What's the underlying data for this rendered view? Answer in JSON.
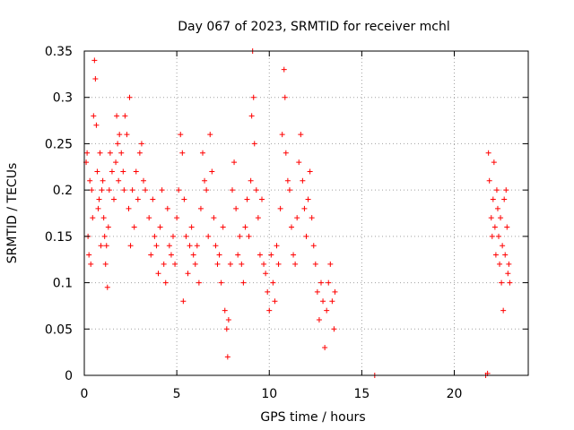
{
  "chart_data": {
    "type": "scatter",
    "title": "Day 067 of 2023, SRMTID for receiver mchl",
    "xlabel": "GPS time / hours",
    "ylabel": "SRMTID / TECUs",
    "xlim": [
      0,
      24
    ],
    "ylim": [
      0,
      0.35
    ],
    "x_ticks": [
      0,
      5,
      10,
      15,
      20
    ],
    "y_ticks": [
      0,
      0.05,
      0.1,
      0.15,
      0.2,
      0.25,
      0.3,
      0.35
    ],
    "x_tick_labels": [
      "0",
      "5",
      "10",
      "15",
      "20"
    ],
    "y_tick_labels": [
      "0",
      "0.05",
      "0.1",
      "0.15",
      "0.2",
      "0.25",
      "0.3",
      "0.35"
    ],
    "grid": true,
    "marker": "+",
    "series": [
      {
        "name": "SRMTID",
        "color": "#ff0000",
        "points": [
          [
            0.1,
            0.23
          ],
          [
            0.15,
            0.24
          ],
          [
            0.2,
            0.15
          ],
          [
            0.25,
            0.13
          ],
          [
            0.3,
            0.21
          ],
          [
            0.35,
            0.12
          ],
          [
            0.4,
            0.2
          ],
          [
            0.45,
            0.17
          ],
          [
            0.5,
            0.28
          ],
          [
            0.55,
            0.34
          ],
          [
            0.6,
            0.32
          ],
          [
            0.65,
            0.27
          ],
          [
            0.7,
            0.22
          ],
          [
            0.75,
            0.18
          ],
          [
            0.8,
            0.19
          ],
          [
            0.85,
            0.24
          ],
          [
            0.9,
            0.14
          ],
          [
            0.95,
            0.2
          ],
          [
            1.0,
            0.21
          ],
          [
            1.05,
            0.17
          ],
          [
            1.1,
            0.15
          ],
          [
            1.15,
            0.12
          ],
          [
            1.2,
            0.14
          ],
          [
            1.25,
            0.095
          ],
          [
            1.3,
            0.16
          ],
          [
            1.35,
            0.2
          ],
          [
            1.4,
            0.24
          ],
          [
            1.5,
            0.22
          ],
          [
            1.6,
            0.19
          ],
          [
            1.7,
            0.23
          ],
          [
            1.75,
            0.28
          ],
          [
            1.8,
            0.25
          ],
          [
            1.85,
            0.21
          ],
          [
            1.9,
            0.26
          ],
          [
            2.0,
            0.24
          ],
          [
            2.1,
            0.22
          ],
          [
            2.15,
            0.2
          ],
          [
            2.2,
            0.28
          ],
          [
            2.3,
            0.26
          ],
          [
            2.4,
            0.18
          ],
          [
            2.45,
            0.3
          ],
          [
            2.5,
            0.14
          ],
          [
            2.6,
            0.2
          ],
          [
            2.7,
            0.16
          ],
          [
            2.8,
            0.22
          ],
          [
            2.9,
            0.19
          ],
          [
            3.0,
            0.24
          ],
          [
            3.1,
            0.25
          ],
          [
            3.2,
            0.21
          ],
          [
            3.3,
            0.2
          ],
          [
            3.5,
            0.17
          ],
          [
            3.6,
            0.13
          ],
          [
            3.7,
            0.19
          ],
          [
            3.8,
            0.15
          ],
          [
            3.9,
            0.14
          ],
          [
            4.0,
            0.11
          ],
          [
            4.1,
            0.16
          ],
          [
            4.2,
            0.2
          ],
          [
            4.3,
            0.12
          ],
          [
            4.4,
            0.1
          ],
          [
            4.5,
            0.18
          ],
          [
            4.6,
            0.14
          ],
          [
            4.7,
            0.13
          ],
          [
            4.8,
            0.15
          ],
          [
            4.9,
            0.12
          ],
          [
            5.0,
            0.17
          ],
          [
            5.1,
            0.2
          ],
          [
            5.2,
            0.26
          ],
          [
            5.3,
            0.24
          ],
          [
            5.35,
            0.08
          ],
          [
            5.4,
            0.19
          ],
          [
            5.5,
            0.15
          ],
          [
            5.6,
            0.11
          ],
          [
            5.7,
            0.14
          ],
          [
            5.8,
            0.16
          ],
          [
            5.9,
            0.13
          ],
          [
            6.0,
            0.12
          ],
          [
            6.1,
            0.14
          ],
          [
            6.2,
            0.1
          ],
          [
            6.3,
            0.18
          ],
          [
            6.4,
            0.24
          ],
          [
            6.5,
            0.21
          ],
          [
            6.6,
            0.2
          ],
          [
            6.7,
            0.15
          ],
          [
            6.8,
            0.26
          ],
          [
            6.9,
            0.22
          ],
          [
            7.0,
            0.17
          ],
          [
            7.1,
            0.14
          ],
          [
            7.2,
            0.12
          ],
          [
            7.3,
            0.13
          ],
          [
            7.4,
            0.1
          ],
          [
            7.5,
            0.16
          ],
          [
            7.6,
            0.07
          ],
          [
            7.7,
            0.05
          ],
          [
            7.75,
            0.02
          ],
          [
            7.8,
            0.06
          ],
          [
            7.9,
            0.12
          ],
          [
            8.0,
            0.2
          ],
          [
            8.1,
            0.23
          ],
          [
            8.2,
            0.18
          ],
          [
            8.3,
            0.13
          ],
          [
            8.4,
            0.15
          ],
          [
            8.5,
            0.12
          ],
          [
            8.6,
            0.1
          ],
          [
            8.7,
            0.16
          ],
          [
            8.8,
            0.19
          ],
          [
            8.9,
            0.15
          ],
          [
            9.0,
            0.21
          ],
          [
            9.05,
            0.28
          ],
          [
            9.1,
            0.35
          ],
          [
            9.15,
            0.3
          ],
          [
            9.2,
            0.25
          ],
          [
            9.3,
            0.2
          ],
          [
            9.4,
            0.17
          ],
          [
            9.5,
            0.13
          ],
          [
            9.6,
            0.19
          ],
          [
            9.7,
            0.12
          ],
          [
            9.8,
            0.11
          ],
          [
            9.9,
            0.09
          ],
          [
            10.0,
            0.07
          ],
          [
            10.1,
            0.13
          ],
          [
            10.2,
            0.1
          ],
          [
            10.3,
            0.08
          ],
          [
            10.4,
            0.14
          ],
          [
            10.5,
            0.12
          ],
          [
            10.6,
            0.18
          ],
          [
            10.7,
            0.26
          ],
          [
            10.8,
            0.33
          ],
          [
            10.85,
            0.3
          ],
          [
            10.9,
            0.24
          ],
          [
            11.0,
            0.21
          ],
          [
            11.1,
            0.2
          ],
          [
            11.2,
            0.16
          ],
          [
            11.3,
            0.13
          ],
          [
            11.4,
            0.12
          ],
          [
            11.5,
            0.17
          ],
          [
            11.6,
            0.23
          ],
          [
            11.7,
            0.26
          ],
          [
            11.8,
            0.21
          ],
          [
            11.9,
            0.18
          ],
          [
            12.0,
            0.15
          ],
          [
            12.1,
            0.19
          ],
          [
            12.2,
            0.22
          ],
          [
            12.3,
            0.17
          ],
          [
            12.4,
            0.14
          ],
          [
            12.5,
            0.12
          ],
          [
            12.6,
            0.09
          ],
          [
            12.7,
            0.06
          ],
          [
            12.8,
            0.1
          ],
          [
            12.9,
            0.08
          ],
          [
            13.0,
            0.03
          ],
          [
            13.1,
            0.07
          ],
          [
            13.2,
            0.1
          ],
          [
            13.3,
            0.12
          ],
          [
            13.4,
            0.08
          ],
          [
            13.5,
            0.05
          ],
          [
            13.55,
            0.09
          ],
          [
            15.7,
            0.0
          ],
          [
            21.7,
            0.0
          ],
          [
            21.8,
            0.002
          ],
          [
            21.85,
            0.24
          ],
          [
            21.9,
            0.21
          ],
          [
            22.0,
            0.17
          ],
          [
            22.05,
            0.15
          ],
          [
            22.1,
            0.19
          ],
          [
            22.15,
            0.23
          ],
          [
            22.2,
            0.16
          ],
          [
            22.25,
            0.13
          ],
          [
            22.3,
            0.2
          ],
          [
            22.35,
            0.18
          ],
          [
            22.4,
            0.15
          ],
          [
            22.45,
            0.12
          ],
          [
            22.5,
            0.17
          ],
          [
            22.55,
            0.1
          ],
          [
            22.6,
            0.14
          ],
          [
            22.65,
            0.07
          ],
          [
            22.7,
            0.19
          ],
          [
            22.75,
            0.13
          ],
          [
            22.8,
            0.2
          ],
          [
            22.85,
            0.16
          ],
          [
            22.9,
            0.11
          ],
          [
            22.95,
            0.12
          ],
          [
            23.0,
            0.1
          ]
        ]
      }
    ]
  }
}
